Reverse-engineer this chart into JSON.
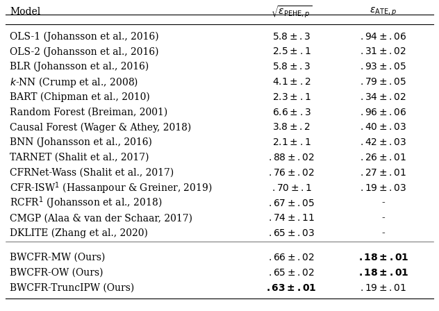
{
  "title": "Model",
  "col2_header": "$\\sqrt{\\epsilon_{\\mathrm{PEHE},p}}$",
  "col3_header": "$\\epsilon_{\\mathrm{ATE},p}$",
  "rows": [
    {
      "model": "OLS-1 (Johansson et al., 2016)",
      "pehe": "5.8 \\pm .3",
      "ate": ".94 \\pm .06",
      "pehe_bold": false,
      "ate_bold": false
    },
    {
      "model": "OLS-2 (Johansson et al., 2016)",
      "pehe": "2.5 \\pm .1",
      "ate": ".31 \\pm .02",
      "pehe_bold": false,
      "ate_bold": false
    },
    {
      "model": "BLR (Johansson et al., 2016)",
      "pehe": "5.8 \\pm .3",
      "ate": ".93 \\pm .05",
      "pehe_bold": false,
      "ate_bold": false
    },
    {
      "model": "$k$-NN (Crump et al., 2008)",
      "pehe": "4.1 \\pm .2",
      "ate": ".79 \\pm .05",
      "pehe_bold": false,
      "ate_bold": false
    },
    {
      "model": "BART (Chipman et al., 2010)",
      "pehe": "2.3 \\pm .1",
      "ate": ".34 \\pm .02",
      "pehe_bold": false,
      "ate_bold": false
    },
    {
      "model": "Random Forest (Breiman, 2001)",
      "pehe": "6.6 \\pm .3",
      "ate": ".96 \\pm .06",
      "pehe_bold": false,
      "ate_bold": false
    },
    {
      "model": "Causal Forest (Wager & Athey, 2018)",
      "pehe": "3.8 \\pm .2",
      "ate": ".40 \\pm .03",
      "pehe_bold": false,
      "ate_bold": false
    },
    {
      "model": "BNN (Johansson et al., 2016)",
      "pehe": "2.1 \\pm .1",
      "ate": ".42 \\pm .03",
      "pehe_bold": false,
      "ate_bold": false
    },
    {
      "model": "TARNET (Shalit et al., 2017)",
      "pehe": ".88 \\pm .02",
      "ate": ".26 \\pm .01",
      "pehe_bold": false,
      "ate_bold": false
    },
    {
      "model": "CFRNet-Wass (Shalit et al., 2017)",
      "pehe": ".76 \\pm .02",
      "ate": ".27 \\pm .01",
      "pehe_bold": false,
      "ate_bold": false
    },
    {
      "model": "CFR-ISW$^1$ (Hassanpour & Greiner, 2019)",
      "pehe": ".70 \\pm .1",
      "ate": ".19 \\pm .03",
      "pehe_bold": false,
      "ate_bold": false
    },
    {
      "model": "RCFR$^1$ (Johansson et al., 2018)",
      "pehe": ".67 \\pm .05",
      "ate": "-",
      "pehe_bold": false,
      "ate_bold": false
    },
    {
      "model": "CMGP (Alaa & van der Schaar, 2017)",
      "pehe": ".74 \\pm .11",
      "ate": "-",
      "pehe_bold": false,
      "ate_bold": false
    },
    {
      "model": "DKLITE (Zhang et al., 2020)",
      "pehe": ".65 \\pm .03",
      "ate": "-",
      "pehe_bold": false,
      "ate_bold": false
    },
    {
      "model": "BWCFR-MW (Ours)",
      "pehe": ".66 \\pm .02",
      "ate": ".18 \\pm .01",
      "pehe_bold": false,
      "ate_bold": true
    },
    {
      "model": "BWCFR-OW (Ours)",
      "pehe": ".65 \\pm .02",
      "ate": ".18 \\pm .01",
      "pehe_bold": false,
      "ate_bold": true
    },
    {
      "model": "BWCFR-TruncIPW (Ours)",
      "pehe": ".63 \\pm .01",
      "ate": ".19 \\pm .01",
      "pehe_bold": true,
      "ate_bold": false
    }
  ],
  "separator_after": [
    0,
    13
  ],
  "gap_before": [
    14
  ],
  "background_color": "#ffffff",
  "text_color": "#000000",
  "fontsize": 10
}
